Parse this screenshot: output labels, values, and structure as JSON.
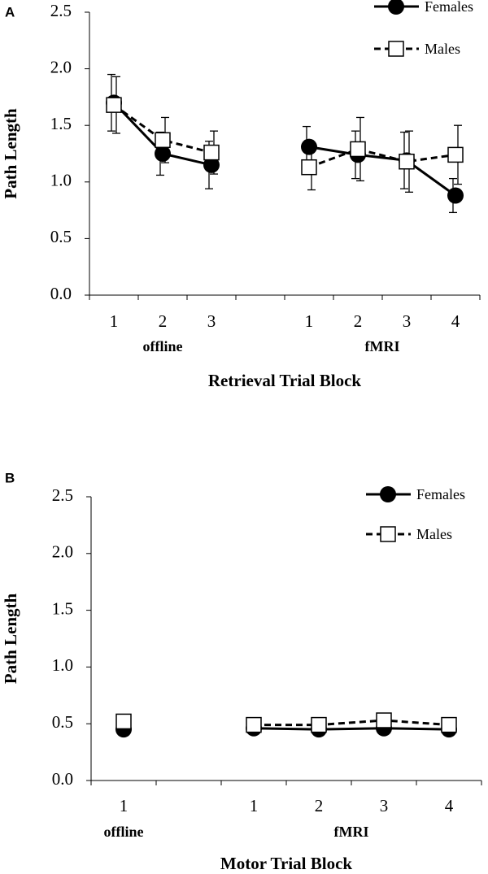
{
  "chart_data": [
    {
      "type": "line",
      "panel_label": "A",
      "ylabel": "Path Length",
      "xlabel": "Retrieval Trial Block",
      "categories": [
        "1",
        "2",
        "3",
        null,
        "1",
        "2",
        "3",
        "4"
      ],
      "category_groups": [
        "offline",
        "offline",
        "offline",
        null,
        "fMRI",
        "fMRI",
        "fMRI",
        "fMRI"
      ],
      "ylim": [
        0,
        2.5
      ],
      "yticks": [
        {
          "value": 0,
          "label": "0.0"
        },
        0.5,
        {
          "value": 1,
          "label": "1.0"
        },
        1.5,
        {
          "value": 2,
          "label": "2.0"
        },
        2.5
      ],
      "legend": "top-right",
      "series": [
        {
          "name": "Females",
          "color": "#000000",
          "marker": "circle",
          "dashed": false,
          "values": [
            1.7,
            1.25,
            1.15,
            null,
            1.31,
            1.24,
            1.19,
            0.88
          ],
          "errors": [
            0.25,
            0.19,
            0.21,
            null,
            0.18,
            0.21,
            0.25,
            0.15
          ]
        },
        {
          "name": "Males",
          "color": "#000000",
          "marker": "square",
          "dashed": true,
          "values": [
            1.68,
            1.37,
            1.26,
            null,
            1.13,
            1.29,
            1.18,
            1.24
          ],
          "errors": [
            0.25,
            0.2,
            0.19,
            null,
            0.2,
            0.28,
            0.27,
            0.26
          ]
        }
      ]
    },
    {
      "type": "line",
      "panel_label": "B",
      "ylabel": "Path Length",
      "xlabel": "Motor Trial Block",
      "categories": [
        "1",
        null,
        "1",
        "2",
        "3",
        "4"
      ],
      "category_groups": [
        "offline",
        null,
        "fMRI",
        "fMRI",
        "fMRI",
        "fMRI"
      ],
      "ylim": [
        0,
        2.5
      ],
      "yticks": [
        {
          "value": 0,
          "label": "0.0"
        },
        0.5,
        {
          "value": 1,
          "label": "1.0"
        },
        1.5,
        {
          "value": 2,
          "label": "2.0"
        },
        2.5
      ],
      "legend": "top-right",
      "series": [
        {
          "name": "Females",
          "color": "#000000",
          "marker": "circle",
          "dashed": false,
          "values": [
            0.45,
            null,
            0.46,
            0.45,
            0.46,
            0.45
          ]
        },
        {
          "name": "Males",
          "color": "#000000",
          "marker": "square",
          "dashed": true,
          "values": [
            0.52,
            null,
            0.49,
            0.49,
            0.53,
            0.49
          ]
        }
      ]
    }
  ]
}
